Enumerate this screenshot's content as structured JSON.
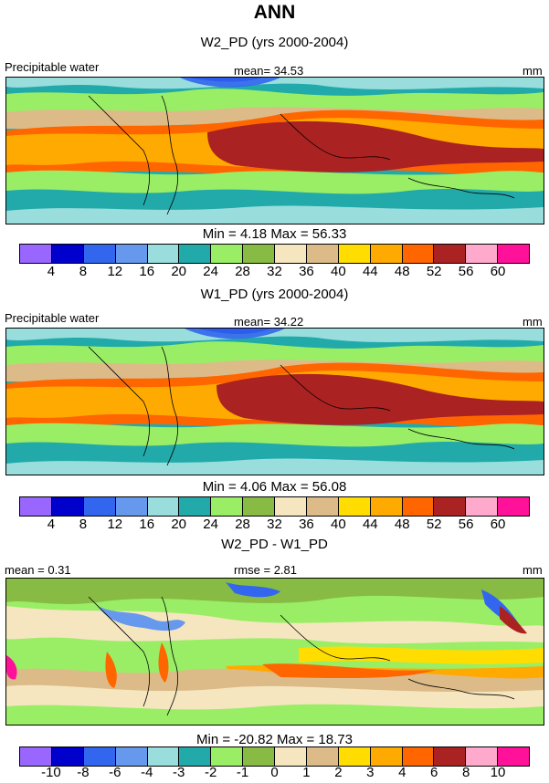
{
  "title": "ANN",
  "colors": {
    "abs": [
      "#9966ff",
      "#0000cc",
      "#3366ee",
      "#6699ee",
      "#99dddd",
      "#22aaaa",
      "#99ee66",
      "#88bb44",
      "#f5e6c0",
      "#ddbb88",
      "#ffdd00",
      "#ffaa00",
      "#ff6600",
      "#aa2222",
      "#ffaacc",
      "#ff1199"
    ],
    "diff": [
      "#9966ff",
      "#0000cc",
      "#3366ee",
      "#6699ee",
      "#99dddd",
      "#22aaaa",
      "#99ee66",
      "#88bb44",
      "#f5e6c0",
      "#ddbb88",
      "#ffdd00",
      "#ffaa00",
      "#ff6600",
      "#aa2222",
      "#ffaacc",
      "#ff1199"
    ]
  },
  "chart_data": [
    {
      "type": "heatmap",
      "title": "W2_PD (yrs 2000-2004)",
      "left_label": "Precipitable water",
      "center_label": "mean=  34.53",
      "units": "mm",
      "min_max": "Min =   4.18 Max =  56.33",
      "mean": 34.53,
      "min": 4.18,
      "max": 56.33,
      "colorbar_ticks": [
        "4",
        "8",
        "12",
        "16",
        "20",
        "24",
        "28",
        "32",
        "36",
        "40",
        "44",
        "48",
        "52",
        "56",
        "60"
      ]
    },
    {
      "type": "heatmap",
      "title": "W1_PD (yrs 2000-2004)",
      "left_label": "Precipitable water",
      "center_label": "mean=  34.22",
      "units": "mm",
      "min_max": "Min =   4.06 Max =  56.08",
      "mean": 34.22,
      "min": 4.06,
      "max": 56.08,
      "colorbar_ticks": [
        "4",
        "8",
        "12",
        "16",
        "20",
        "24",
        "28",
        "32",
        "36",
        "40",
        "44",
        "48",
        "52",
        "56",
        "60"
      ]
    },
    {
      "type": "heatmap",
      "title": "W2_PD - W1_PD",
      "left_label": "mean =   0.31",
      "center_label": "rmse =   2.81",
      "units": "mm",
      "min_max": "Min = -20.82 Max =  18.73",
      "mean": 0.31,
      "rmse": 2.81,
      "min": -20.82,
      "max": 18.73,
      "colorbar_ticks": [
        "-10",
        "-8",
        "-6",
        "-4",
        "-3",
        "-2",
        "-1",
        "0",
        "1",
        "2",
        "3",
        "4",
        "6",
        "8",
        "10"
      ]
    }
  ]
}
